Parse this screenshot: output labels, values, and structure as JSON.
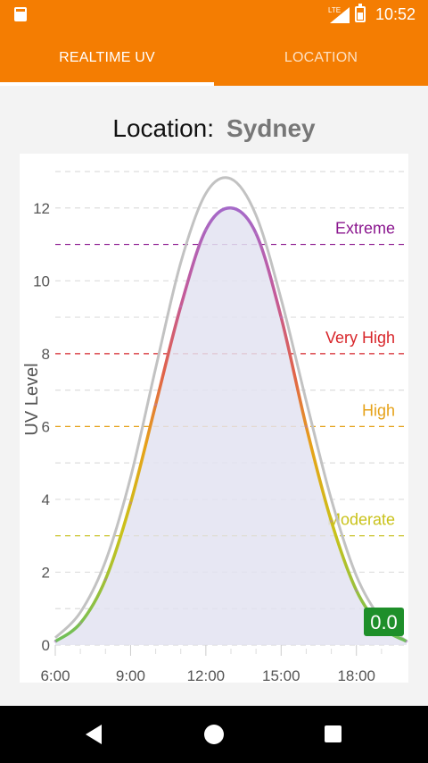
{
  "status_bar": {
    "time": "10:52",
    "network": "LTE",
    "icons": [
      "sd-card-icon",
      "signal-icon",
      "battery-icon"
    ]
  },
  "tabs": [
    {
      "label": "REALTIME UV",
      "active": true
    },
    {
      "label": "LOCATION",
      "active": false
    }
  ],
  "location": {
    "label": "Location:",
    "value": "Sydney"
  },
  "current_uv_badge": "0.0",
  "colors": {
    "accent": "#f47d02",
    "badge": "#1e8f2a"
  },
  "chart_data": {
    "type": "area",
    "ylabel": "UV Level",
    "xlabel": "",
    "x_ticks": [
      "6:00",
      "9:00",
      "12:00",
      "15:00",
      "18:00"
    ],
    "x_tick_values": [
      6,
      9,
      12,
      15,
      18
    ],
    "xlim": [
      6,
      20
    ],
    "y_ticks": [
      0,
      2,
      4,
      6,
      8,
      10,
      12
    ],
    "ylim": [
      0,
      13
    ],
    "grid": true,
    "thresholds": [
      {
        "label": "Moderate",
        "value": 3,
        "color": "#c9c21a"
      },
      {
        "label": "High",
        "value": 6,
        "color": "#e6a21a"
      },
      {
        "label": "Very High",
        "value": 8,
        "color": "#d8262b"
      },
      {
        "label": "Extreme",
        "value": 11,
        "color": "#8b178f"
      }
    ],
    "series": [
      {
        "x": [
          6,
          7,
          8,
          9,
          10,
          11,
          12,
          13,
          14,
          15,
          16,
          17,
          18,
          19,
          20
        ],
        "values": [
          0.1,
          0.6,
          1.8,
          3.9,
          6.6,
          9.3,
          11.4,
          12.0,
          11.3,
          9.0,
          6.0,
          3.4,
          1.5,
          0.5,
          0.1
        ]
      },
      {
        "x": [
          6,
          7,
          8,
          9,
          10,
          11,
          12,
          13,
          14,
          15,
          16,
          17,
          18,
          19,
          20
        ],
        "values": [
          0.2,
          0.9,
          2.3,
          4.6,
          7.6,
          10.5,
          12.4,
          12.8,
          11.8,
          9.5,
          6.7,
          4.0,
          1.9,
          0.7,
          0.1
        ]
      }
    ]
  }
}
